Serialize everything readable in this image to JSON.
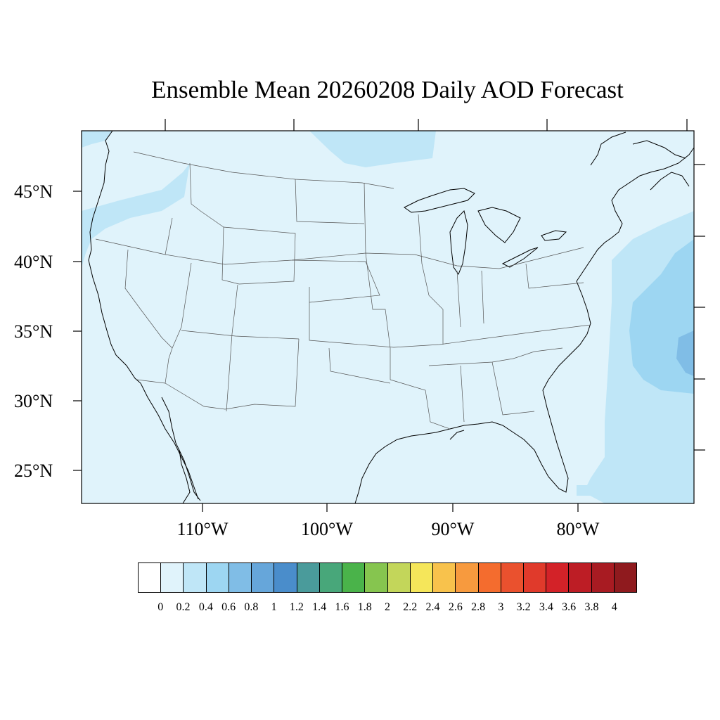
{
  "title": "Ensemble Mean 20260208 Daily AOD Forecast",
  "map": {
    "latitude_labels": [
      "45°N",
      "40°N",
      "35°N",
      "30°N",
      "25°N"
    ],
    "longitude_labels": [
      "110°W",
      "100°W",
      "90°W",
      "80°W"
    ]
  },
  "colorbar": {
    "labels": [
      "0",
      "0.2",
      "0.4",
      "0.6",
      "0.8",
      "1",
      "1.2",
      "1.4",
      "1.6",
      "1.8",
      "2",
      "2.2",
      "2.4",
      "2.6",
      "2.8",
      "3",
      "3.2",
      "3.4",
      "3.6",
      "3.8",
      "4"
    ],
    "colors": [
      "#ffffff",
      "#e0f3fb",
      "#bfe6f7",
      "#9dd6f2",
      "#80bde6",
      "#66a6da",
      "#4a8dcb",
      "#4a9b9b",
      "#48a77a",
      "#4ab34a",
      "#86c54f",
      "#c3d65a",
      "#f5e65a",
      "#f8c24c",
      "#f79a3e",
      "#f46c2e",
      "#ea512e",
      "#e03a2b",
      "#d32228",
      "#bd1d25",
      "#a81b22",
      "#8f1a1e"
    ]
  }
}
